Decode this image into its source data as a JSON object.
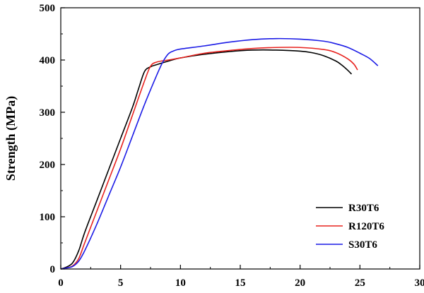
{
  "chart_data": {
    "type": "line",
    "title": "",
    "xlabel": "",
    "ylabel": "Strength (MPa)",
    "xlim": [
      0,
      30
    ],
    "ylim": [
      0,
      500
    ],
    "xticks": [
      "0",
      "5",
      "10",
      "15",
      "20",
      "25",
      "30"
    ],
    "yticks": [
      "0",
      "100",
      "200",
      "300",
      "400",
      "500"
    ],
    "grid": false,
    "legend_position": "bottom-right",
    "series": [
      {
        "name": "R30T6",
        "color": "#000000",
        "x": [
          0,
          0.5,
          1,
          1.5,
          2,
          3,
          4,
          5,
          6,
          6.5,
          7,
          7.5,
          8,
          9,
          10,
          12,
          14,
          16,
          18,
          20,
          21,
          22,
          23,
          23.5,
          24,
          24.3
        ],
        "y": [
          0,
          4,
          12,
          35,
          70,
          130,
          190,
          250,
          310,
          345,
          378,
          387,
          391,
          398,
          404,
          411,
          416,
          419,
          419,
          417,
          414,
          408,
          398,
          390,
          380,
          373
        ]
      },
      {
        "name": "R120T6",
        "color": "#e8231f",
        "x": [
          0,
          0.5,
          1,
          1.5,
          2,
          3,
          4,
          5,
          6,
          7,
          7.5,
          8,
          9,
          10,
          12,
          14,
          16,
          18,
          20,
          22,
          23,
          24,
          24.5,
          24.8
        ],
        "y": [
          0,
          2,
          6,
          20,
          50,
          110,
          170,
          230,
          295,
          360,
          388,
          396,
          400,
          404,
          413,
          418,
          422,
          424,
          424,
          420,
          414,
          402,
          392,
          381
        ]
      },
      {
        "name": "S30T6",
        "color": "#1c1ce6",
        "x": [
          0,
          0.5,
          1,
          1.5,
          2,
          3,
          4,
          5,
          6,
          7,
          8,
          8.5,
          9,
          9.5,
          10,
          12,
          14,
          16,
          18,
          20,
          22,
          23,
          24,
          25,
          25.8,
          26.5
        ],
        "y": [
          0,
          2,
          5,
          15,
          35,
          85,
          140,
          195,
          255,
          315,
          370,
          395,
          412,
          418,
          421,
          427,
          434,
          439,
          441,
          440,
          436,
          431,
          424,
          413,
          403,
          389
        ]
      }
    ]
  }
}
